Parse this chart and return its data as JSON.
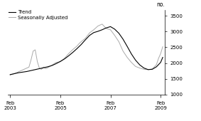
{
  "title": "",
  "ylabel": "no.",
  "ylim": [
    1000,
    3700
  ],
  "yticks": [
    1000,
    1500,
    2000,
    2500,
    3000,
    3500
  ],
  "xtick_labels": [
    "Feb\n2003",
    "Feb\n2005",
    "Feb\n2007",
    "Feb\n2009"
  ],
  "xtick_positions": [
    0,
    24,
    48,
    72
  ],
  "legend_entries": [
    "Trend",
    "Seasonally Adjusted"
  ],
  "trend_color": "#000000",
  "sa_color": "#aaaaaa",
  "background_color": "#ffffff",
  "trend_data": [
    [
      0,
      1630
    ],
    [
      2,
      1660
    ],
    [
      4,
      1690
    ],
    [
      6,
      1710
    ],
    [
      8,
      1730
    ],
    [
      10,
      1760
    ],
    [
      12,
      1790
    ],
    [
      14,
      1820
    ],
    [
      16,
      1850
    ],
    [
      18,
      1880
    ],
    [
      20,
      1920
    ],
    [
      22,
      1980
    ],
    [
      24,
      2050
    ],
    [
      26,
      2130
    ],
    [
      28,
      2230
    ],
    [
      30,
      2340
    ],
    [
      32,
      2460
    ],
    [
      34,
      2590
    ],
    [
      36,
      2740
    ],
    [
      38,
      2880
    ],
    [
      40,
      2970
    ],
    [
      42,
      3010
    ],
    [
      44,
      3060
    ],
    [
      46,
      3120
    ],
    [
      48,
      3160
    ],
    [
      50,
      3080
    ],
    [
      52,
      2950
    ],
    [
      54,
      2760
    ],
    [
      56,
      2530
    ],
    [
      58,
      2290
    ],
    [
      60,
      2090
    ],
    [
      62,
      1940
    ],
    [
      64,
      1840
    ],
    [
      66,
      1790
    ],
    [
      68,
      1800
    ],
    [
      70,
      1880
    ],
    [
      72,
      2020
    ],
    [
      73,
      2180
    ]
  ],
  "sa_data": [
    [
      0,
      1620
    ],
    [
      2,
      1660
    ],
    [
      9,
      1870
    ],
    [
      10,
      2100
    ],
    [
      11,
      2380
    ],
    [
      12,
      2420
    ],
    [
      13,
      2050
    ],
    [
      14,
      1830
    ],
    [
      15,
      1800
    ],
    [
      16,
      1870
    ],
    [
      17,
      1820
    ],
    [
      18,
      1850
    ],
    [
      20,
      1930
    ],
    [
      22,
      2020
    ],
    [
      24,
      2040
    ],
    [
      26,
      2150
    ],
    [
      28,
      2300
    ],
    [
      30,
      2430
    ],
    [
      32,
      2540
    ],
    [
      33,
      2620
    ],
    [
      34,
      2680
    ],
    [
      36,
      2790
    ],
    [
      38,
      2960
    ],
    [
      40,
      3060
    ],
    [
      42,
      3180
    ],
    [
      44,
      3240
    ],
    [
      46,
      3100
    ],
    [
      48,
      3060
    ],
    [
      50,
      2880
    ],
    [
      52,
      2680
    ],
    [
      54,
      2380
    ],
    [
      56,
      2180
    ],
    [
      58,
      2020
    ],
    [
      60,
      1890
    ],
    [
      62,
      1840
    ],
    [
      64,
      1800
    ],
    [
      66,
      1790
    ],
    [
      68,
      1810
    ],
    [
      70,
      1950
    ],
    [
      71,
      2150
    ],
    [
      72,
      2300
    ],
    [
      73,
      2520
    ]
  ]
}
